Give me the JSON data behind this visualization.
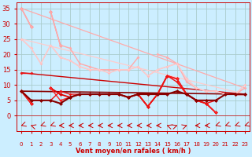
{
  "background_color": "#cceeff",
  "grid_color": "#aacccc",
  "ylabel": "Vent moyen/en rafales ( km/h )",
  "ylim": [
    -5,
    37
  ],
  "yticks": [
    0,
    5,
    10,
    15,
    20,
    25,
    30,
    35
  ],
  "xlim": [
    -0.5,
    23.5
  ],
  "series": [
    {
      "data": [
        35,
        29,
        null,
        34,
        23,
        null,
        null,
        null,
        null,
        null,
        null,
        null,
        null,
        null,
        null,
        null,
        null,
        null,
        null,
        null,
        null,
        null,
        null,
        null
      ],
      "color": "#ff8888",
      "lw": 1.0,
      "marker": "D",
      "ms": 2.5
    },
    {
      "data": [
        35,
        29,
        null,
        34,
        23,
        22,
        17,
        16,
        15,
        15,
        15,
        15,
        19,
        null,
        20,
        19,
        17,
        11,
        9,
        8,
        8,
        null,
        7,
        9
      ],
      "color": "#ffaaaa",
      "lw": 1.0,
      "marker": "D",
      "ms": 2.0
    },
    {
      "data": [
        25,
        22,
        17,
        23,
        19,
        18,
        16,
        15,
        15,
        14,
        15,
        15,
        16,
        13,
        15,
        16,
        17,
        12,
        9,
        8,
        8,
        7,
        7,
        10
      ],
      "color": "#ffbbbb",
      "lw": 1.0,
      "marker": "D",
      "ms": 2.0
    },
    {
      "data": [
        25,
        22,
        17,
        23,
        19,
        18,
        16,
        15,
        15,
        14,
        15,
        15,
        16,
        13,
        15,
        16,
        17,
        12,
        9,
        8,
        8,
        7,
        7,
        10
      ],
      "color": "#ffcccc",
      "lw": 0.8,
      "marker": null,
      "ms": 0
    },
    {
      "data": [
        8,
        4,
        null,
        9,
        7,
        6,
        7,
        7,
        7,
        7,
        7,
        6,
        7,
        3,
        7,
        13,
        12,
        7,
        5,
        4,
        1,
        null,
        7,
        7
      ],
      "color": "#dd0000",
      "lw": 1.3,
      "marker": "D",
      "ms": 2.5
    },
    {
      "data": [
        8,
        4,
        null,
        9,
        5,
        6,
        7,
        7,
        7,
        7,
        7,
        6,
        7,
        3,
        7,
        13,
        12,
        7,
        5,
        4,
        1,
        null,
        7,
        7
      ],
      "color": "#ff2222",
      "lw": 1.0,
      "marker": "D",
      "ms": 2.0
    },
    {
      "data": [
        14,
        14,
        null,
        5,
        8,
        7,
        7,
        7,
        7,
        7,
        7,
        6,
        7,
        3,
        7,
        13,
        11,
        7,
        5,
        4,
        5,
        null,
        7,
        7
      ],
      "color": "#ee1111",
      "lw": 1.0,
      "marker": "D",
      "ms": 2.0
    },
    {
      "data": [
        8,
        5,
        5,
        5,
        4,
        6,
        7,
        7,
        7,
        7,
        7,
        6,
        7,
        7,
        7,
        7,
        8,
        7,
        5,
        5,
        5,
        7,
        7,
        7
      ],
      "color": "#880000",
      "lw": 1.5,
      "marker": "D",
      "ms": 2.5
    }
  ],
  "trend_lines": [
    {
      "x0": 0,
      "y0": 35,
      "x1": 23,
      "y1": 9,
      "color": "#ffaaaa",
      "lw": 0.9
    },
    {
      "x0": 0,
      "y0": 25,
      "x1": 23,
      "y1": 7,
      "color": "#ffcccc",
      "lw": 0.9
    },
    {
      "x0": 0,
      "y0": 14,
      "x1": 23,
      "y1": 7,
      "color": "#cc0000",
      "lw": 1.0
    },
    {
      "x0": 0,
      "y0": 8,
      "x1": 23,
      "y1": 7,
      "color": "#880000",
      "lw": 1.2
    }
  ],
  "x_values": [
    0,
    1,
    2,
    3,
    4,
    5,
    6,
    7,
    8,
    9,
    10,
    11,
    12,
    13,
    14,
    15,
    16,
    17,
    18,
    19,
    20,
    21,
    22,
    23
  ],
  "x_labels": [
    "0",
    "1",
    "2",
    "3",
    "4",
    "5",
    "6",
    "7",
    "8",
    "9",
    "10",
    "11",
    "12",
    "13",
    "14",
    "15",
    "16",
    "17",
    "18",
    "19",
    "20",
    "21",
    "22",
    "23"
  ],
  "wind_dirs": [
    225,
    315,
    225,
    225,
    270,
    270,
    270,
    270,
    270,
    270,
    270,
    270,
    270,
    270,
    270,
    315,
    45,
    45,
    270,
    270,
    225,
    225,
    225,
    225
  ],
  "arrow_color": "#cc0000"
}
